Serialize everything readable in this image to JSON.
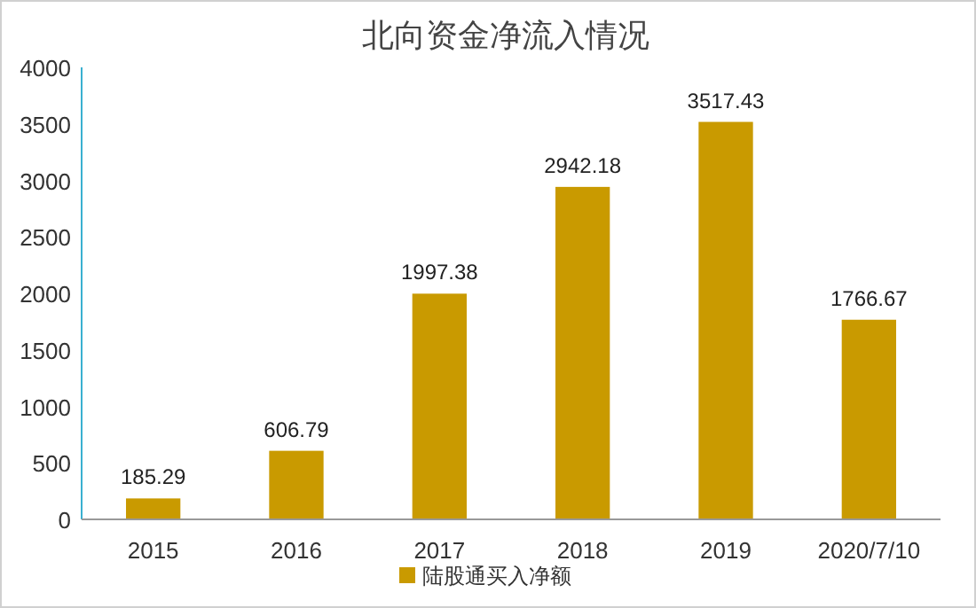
{
  "chart_data": {
    "type": "bar",
    "title": "北向资金净流入情况",
    "categories": [
      "2015",
      "2016",
      "2017",
      "2018",
      "2019",
      "2020/7/10"
    ],
    "series": [
      {
        "name": "陆股通买入净额",
        "color": "#c99a00",
        "values": [
          185.29,
          606.79,
          1997.38,
          2942.18,
          3517.43,
          1766.67
        ]
      }
    ],
    "ylim": [
      0,
      4000
    ],
    "yticks": [
      0,
      500,
      1000,
      1500,
      2000,
      2500,
      3000,
      3500,
      4000
    ],
    "data_labels": true,
    "legend": "bottom",
    "grid": false
  }
}
